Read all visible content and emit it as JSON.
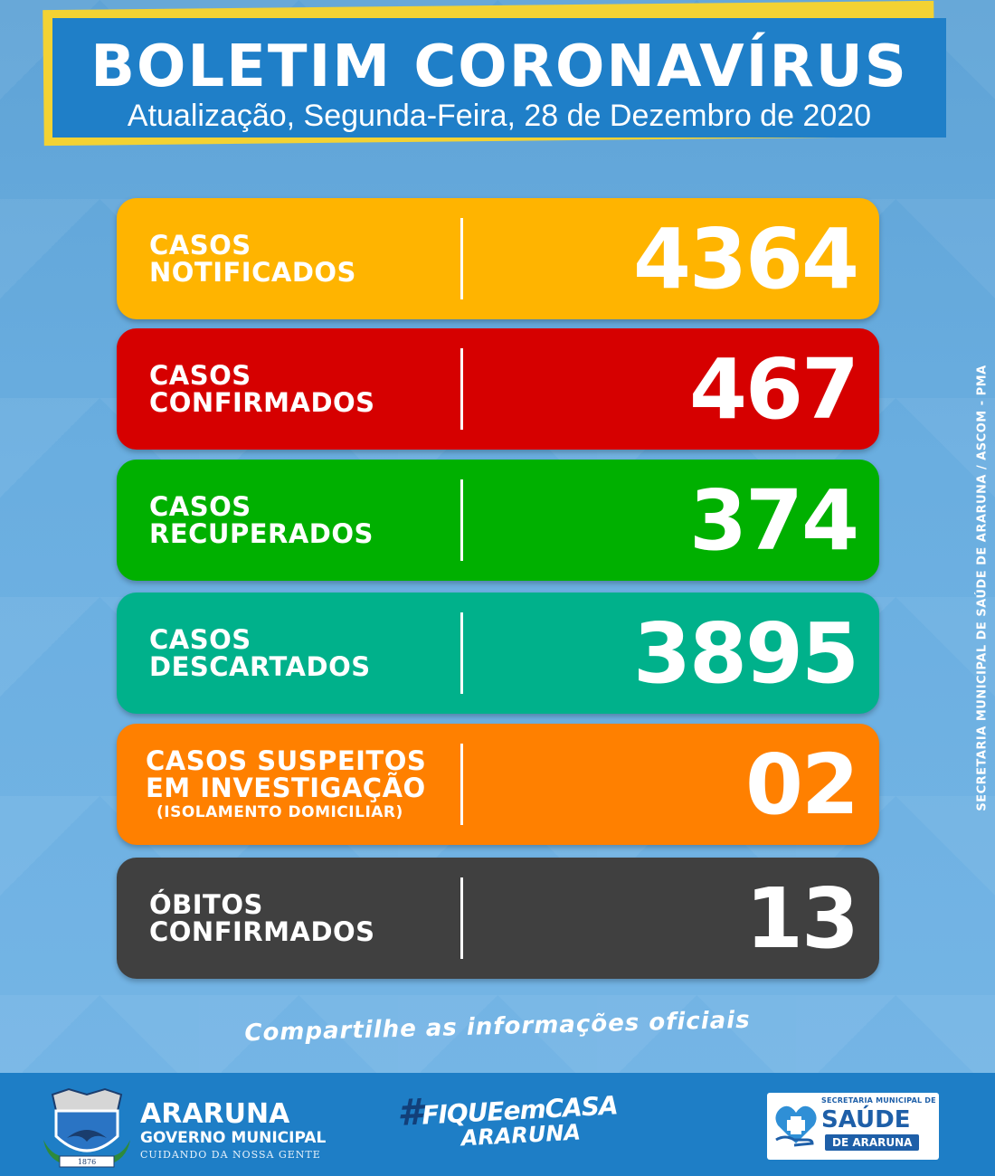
{
  "header": {
    "title": "BOLETIM CORONAVÍRUS",
    "subtitle": "Atualização, Segunda-Feira, 28 de Dezembro de 2020"
  },
  "cards": [
    {
      "label_line1": "CASOS",
      "label_line2": "NOTIFICADOS",
      "value": "4364",
      "color": "#ffb400"
    },
    {
      "label_line1": "CASOS",
      "label_line2": "CONFIRMADOS",
      "value": "467",
      "color": "#d60000"
    },
    {
      "label_line1": "CASOS",
      "label_line2": "RECUPERADOS",
      "value": "374",
      "color": "#00b000"
    },
    {
      "label_line1": "CASOS",
      "label_line2": "DESCARTADOS",
      "value": "3895",
      "color": "#00b18b"
    },
    {
      "label_line1": "CASOS SUSPEITOS",
      "label_line2": "EM INVESTIGAÇÃO",
      "label_note": "(ISOLAMENTO DOMICILIAR)",
      "value": "02",
      "color": "#ff8000"
    },
    {
      "label_line1": "ÓBITOS",
      "label_line2": "CONFIRMADOS",
      "value": "13",
      "color": "#404040"
    }
  ],
  "side_credit": "SECRETARIA MUNICIPAL DE SAÚDE DE ARARUNA / ASCOM - PMA",
  "share_text": "Compartilhe as informações oficiais",
  "footer": {
    "city_name": "ARARUNA",
    "city_sub": "GOVERNO MUNICIPAL",
    "city_motto": "CUIDANDO DA NOSSA GENTE",
    "crest_year": "1876",
    "hashtag_line1": "FIQUEemCASA",
    "hashtag_line2": "ARARUNA",
    "hashtag_symbol": "#",
    "saude_top": "SECRETARIA MUNICIPAL DE",
    "saude_main": "SAÚDE",
    "saude_sub": "DE ARARUNA"
  }
}
